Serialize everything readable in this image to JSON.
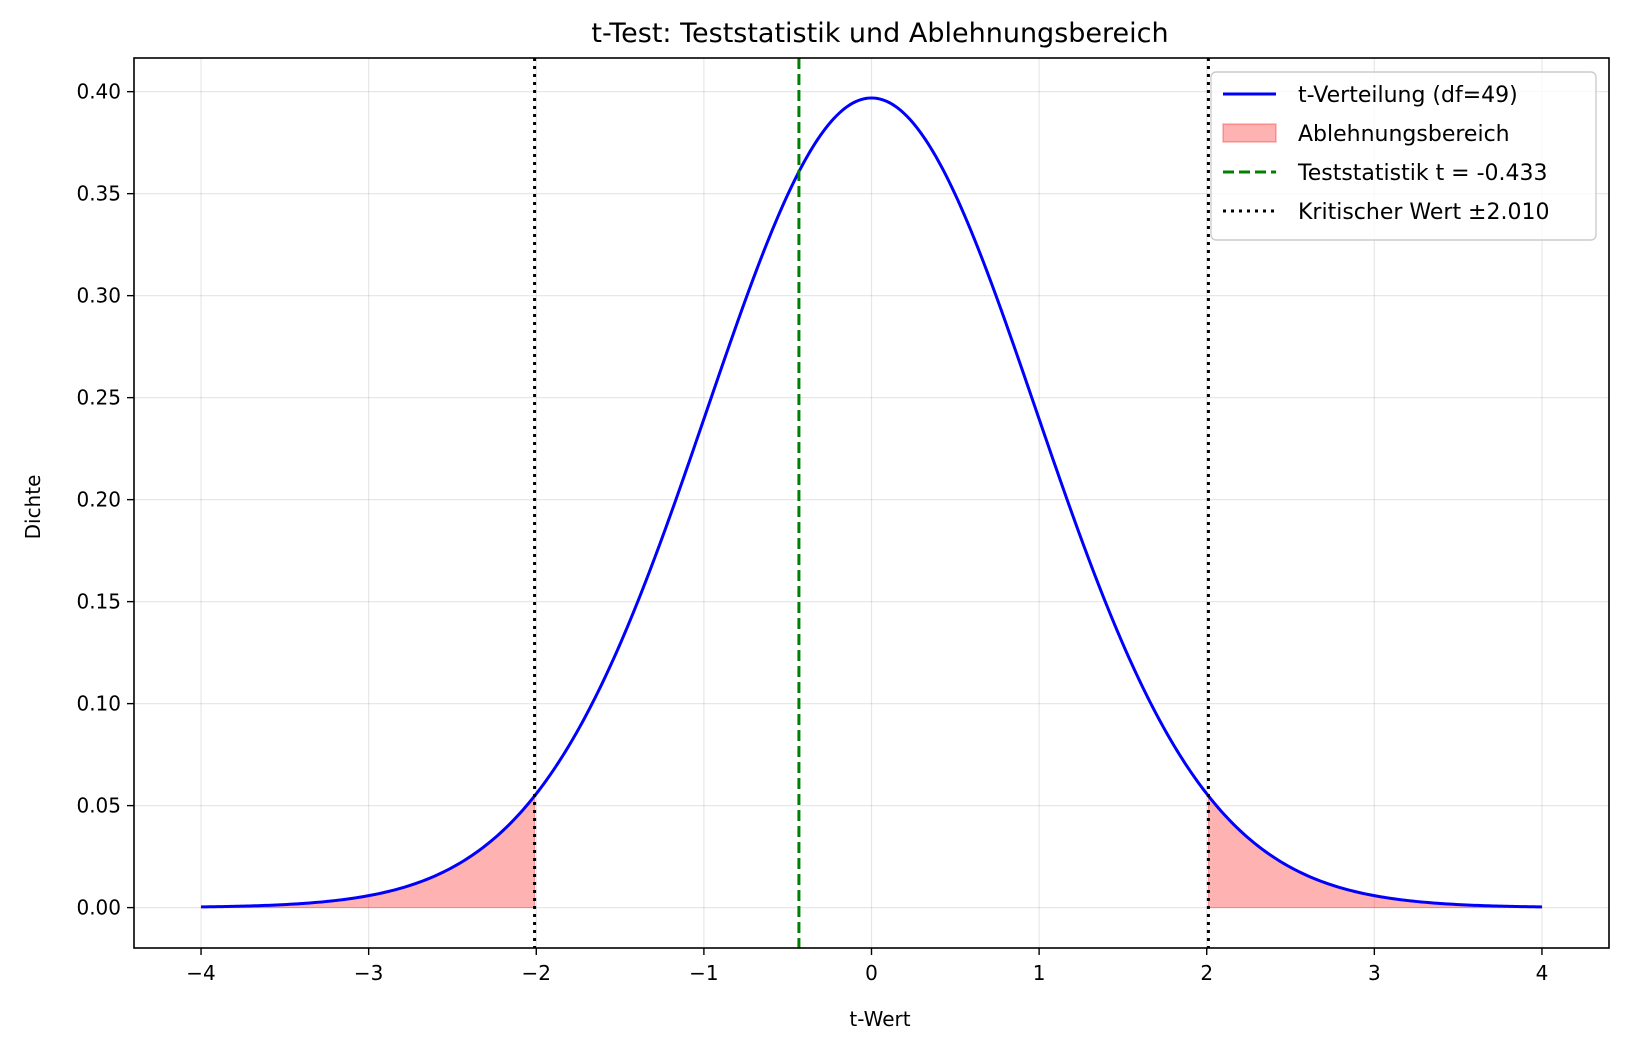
{
  "chart_data": {
    "type": "line",
    "title": "t-Test: Teststatistik und Ablehnungsbereich",
    "xlabel": "t-Wert",
    "ylabel": "Dichte",
    "xlim": [
      -4.4,
      4.4
    ],
    "ylim": [
      -0.0198,
      0.4165
    ],
    "x_ticks": [
      -4,
      -3,
      -2,
      -1,
      0,
      1,
      2,
      3,
      4
    ],
    "x_tick_labels": [
      "−4",
      "−3",
      "−2",
      "−1",
      "0",
      "1",
      "2",
      "3",
      "4"
    ],
    "y_ticks": [
      0.0,
      0.05,
      0.1,
      0.15,
      0.2,
      0.25,
      0.3,
      0.35,
      0.4
    ],
    "y_tick_labels": [
      "0.00",
      "0.05",
      "0.10",
      "0.15",
      "0.20",
      "0.25",
      "0.30",
      "0.35",
      "0.40"
    ],
    "grid": true,
    "legend_position": "top-right",
    "distribution": {
      "kind": "student-t",
      "df": 49,
      "x_range": [
        -4,
        4
      ]
    },
    "series": [
      {
        "name": "t-Verteilung (df=49)",
        "kind": "line",
        "color": "#0000ff"
      },
      {
        "name": "Ablehnungsbereich",
        "kind": "fill",
        "color": "#ff0000",
        "regions": [
          [
            -4,
            -2.01
          ],
          [
            2.01,
            4
          ]
        ]
      },
      {
        "name": "Teststatistik t = -0.433",
        "kind": "vline",
        "x": -0.433,
        "color": "#008000",
        "style": "dashed"
      },
      {
        "name": "Kritischer Wert ±2.010",
        "kind": "vline",
        "x": [
          -2.01,
          2.01
        ],
        "color": "#000000",
        "style": "dotted"
      }
    ]
  }
}
